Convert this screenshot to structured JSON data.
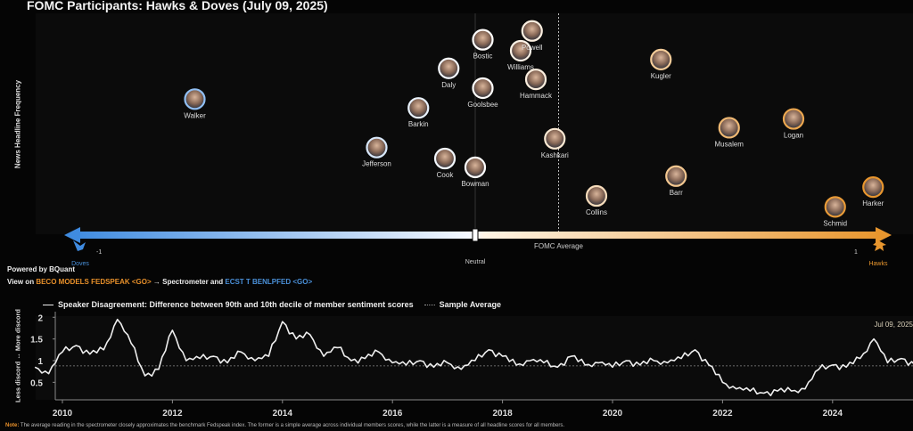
{
  "title": "FOMC Participants: Hawks & Doves (July 09, 2025)",
  "powered_by": "Powered by BQuant",
  "view_on": {
    "prefix": "View on ",
    "link1": "BECO MODELS FEDSPEAK <GO>",
    "mid": " → Spectrometer and ",
    "link2": "ECST T BENLPFED <GO>"
  },
  "note": {
    "label": "Note:",
    "text": "The average reading in the spectrometer closely approximates the benchmark Fedspeak index. The former is a simple average across individual members scores, while the latter is a measure of all headline scores for all members."
  },
  "colors": {
    "dove": "#4a90d9",
    "hawk": "#e8962e",
    "neutral": "#ffffff",
    "line": "#eeeeee"
  },
  "chart_data": [
    {
      "type": "scatter",
      "ylabel": "News Headline Frequency",
      "xlim": [
        -1,
        1
      ],
      "x_ticks": [
        {
          "value": -1,
          "label": "-1"
        },
        {
          "value": 0,
          "label": "Neutral"
        },
        {
          "value": 1,
          "label": "1"
        }
      ],
      "end_labels": {
        "left": "Doves",
        "right": "Hawks"
      },
      "average": {
        "label": "FOMC Average",
        "value": 0.22
      },
      "points": [
        {
          "name": "Walker",
          "x": -0.74,
          "y": 0.61
        },
        {
          "name": "Jefferson",
          "x": -0.26,
          "y": 0.39
        },
        {
          "name": "Barkin",
          "x": -0.15,
          "y": 0.57
        },
        {
          "name": "Daly",
          "x": -0.07,
          "y": 0.75
        },
        {
          "name": "Cook",
          "x": -0.08,
          "y": 0.34
        },
        {
          "name": "Bostic",
          "x": 0.02,
          "y": 0.88
        },
        {
          "name": "Goolsbee",
          "x": 0.02,
          "y": 0.66
        },
        {
          "name": "Bowman",
          "x": 0.0,
          "y": 0.3
        },
        {
          "name": "Williams",
          "x": 0.12,
          "y": 0.83
        },
        {
          "name": "Powell",
          "x": 0.15,
          "y": 0.92
        },
        {
          "name": "Hammack",
          "x": 0.16,
          "y": 0.7
        },
        {
          "name": "Kashkari",
          "x": 0.21,
          "y": 0.43
        },
        {
          "name": "Collins",
          "x": 0.32,
          "y": 0.17
        },
        {
          "name": "Kugler",
          "x": 0.49,
          "y": 0.79
        },
        {
          "name": "Barr",
          "x": 0.53,
          "y": 0.26
        },
        {
          "name": "Musalem",
          "x": 0.67,
          "y": 0.48
        },
        {
          "name": "Logan",
          "x": 0.84,
          "y": 0.52
        },
        {
          "name": "Schmid",
          "x": 0.95,
          "y": 0.12
        },
        {
          "name": "Harker",
          "x": 1.05,
          "y": 0.21
        }
      ]
    },
    {
      "type": "line",
      "series_name": "Speaker Disagreement: Difference between 90th and 10th decile of member sentiment scores",
      "average_name": "Sample Average",
      "average_value": 0.88,
      "ylabel": "Less discord ↔ More discord",
      "ylim": [
        0.1,
        2.1
      ],
      "y_ticks": [
        "0.5",
        "1",
        "1.5",
        "2"
      ],
      "x_ticks": [
        "2010",
        "2012",
        "2014",
        "2016",
        "2018",
        "2020",
        "2022",
        "2024"
      ],
      "xlim": [
        2009.5,
        2025.7
      ],
      "x_start": 2009.5,
      "x_step": 0.25,
      "values": [
        0.85,
        0.7,
        1.2,
        1.35,
        1.15,
        1.25,
        1.95,
        1.4,
        0.65,
        0.8,
        1.7,
        1.0,
        1.05,
        1.1,
        0.95,
        1.2,
        1.0,
        1.1,
        1.9,
        1.5,
        1.6,
        1.1,
        1.3,
        1.0,
        1.05,
        1.2,
        0.95,
        0.9,
        1.0,
        0.85,
        0.95,
        0.8,
        1.0,
        1.25,
        1.1,
        0.9,
        1.0,
        0.95,
        0.85,
        1.1,
        0.9,
        0.95,
        0.85,
        1.0,
        0.9,
        1.0,
        0.95,
        1.05,
        1.25,
        0.9,
        0.5,
        0.35,
        0.3,
        0.25,
        0.3,
        0.3,
        0.35,
        0.8,
        0.9,
        0.85,
        1.05,
        1.5,
        0.95,
        1.05,
        0.9,
        1.05
      ],
      "annotation": "Jul 09, 2025"
    }
  ]
}
